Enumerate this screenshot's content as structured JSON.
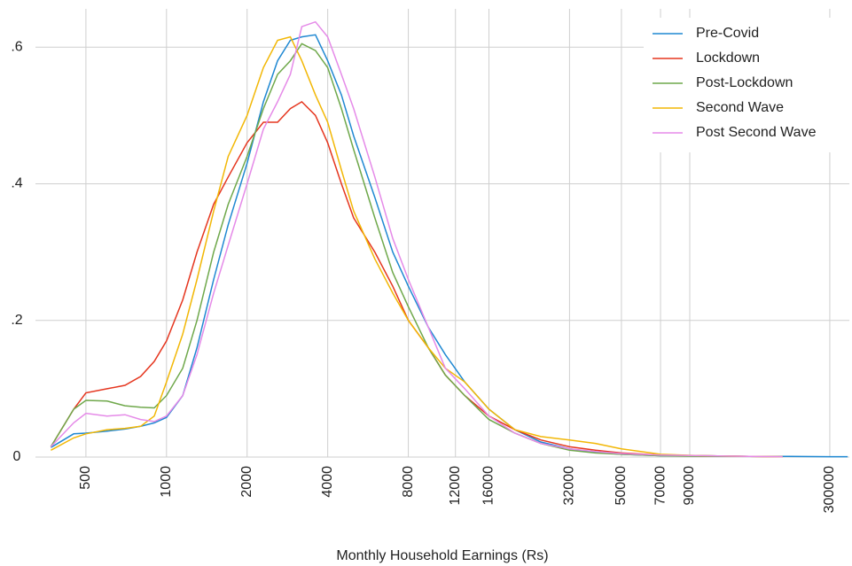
{
  "chart_data": {
    "type": "line",
    "x_label": "Monthly Household Earnings (Rs)",
    "x": [
      370,
      450,
      500,
      600,
      700,
      800,
      900,
      1000,
      1150,
      1300,
      1500,
      1700,
      2000,
      2300,
      2600,
      2900,
      3200,
      3600,
      4000,
      4500,
      5000,
      6000,
      7000,
      8000,
      9500,
      11000,
      13000,
      16000,
      20000,
      25000,
      32000,
      40000,
      50000,
      70000,
      100000,
      150000,
      200000,
      300000,
      350000
    ],
    "xlog": true,
    "xlim": [
      324,
      355000
    ],
    "xticks": [
      500,
      1000,
      2000,
      4000,
      8000,
      12000,
      16000,
      32000,
      50000,
      70000,
      90000,
      300000
    ],
    "ylim": [
      0,
      0.656
    ],
    "yticks": [
      0,
      {
        "value": 0.2,
        "label": ".2"
      },
      {
        "value": 0.4,
        "label": ".4"
      },
      {
        "value": 0.6,
        "label": ".6"
      }
    ],
    "grid": true,
    "legend": "top-right",
    "series": [
      {
        "name": "Pre-Covid",
        "color": "#1f88d2",
        "values": [
          0.014,
          0.034,
          0.035,
          0.038,
          0.041,
          0.045,
          0.05,
          0.058,
          0.09,
          0.16,
          0.26,
          0.34,
          0.43,
          0.52,
          0.58,
          0.61,
          0.615,
          0.618,
          0.58,
          0.53,
          0.47,
          0.38,
          0.3,
          0.25,
          0.19,
          0.15,
          0.11,
          0.07,
          0.04,
          0.022,
          0.012,
          0.007,
          0.004,
          0.002,
          0.002,
          0.001,
          0.001,
          0.0005,
          0.0005
        ]
      },
      {
        "name": "Lockdown",
        "color": "#e5361f",
        "values": [
          0.015,
          0.07,
          0.094,
          0.1,
          0.105,
          0.118,
          0.14,
          0.17,
          0.23,
          0.3,
          0.37,
          0.41,
          0.46,
          0.49,
          0.49,
          0.51,
          0.52,
          0.5,
          0.46,
          0.4,
          0.35,
          0.3,
          0.25,
          0.2,
          0.16,
          0.12,
          0.09,
          0.06,
          0.04,
          0.025,
          0.015,
          0.01,
          0.006,
          0.003,
          0.002,
          0.001,
          0.0005,
          null,
          null
        ]
      },
      {
        "name": "Post-Lockdown",
        "color": "#6fa84b",
        "values": [
          0.015,
          0.07,
          0.083,
          0.082,
          0.075,
          0.073,
          0.072,
          0.09,
          0.13,
          0.2,
          0.3,
          0.37,
          0.44,
          0.51,
          0.56,
          0.58,
          0.605,
          0.595,
          0.57,
          0.51,
          0.45,
          0.35,
          0.27,
          0.22,
          0.16,
          0.12,
          0.09,
          0.055,
          0.035,
          0.02,
          0.01,
          0.006,
          0.004,
          0.002,
          0.001,
          0.001,
          0.0005,
          null,
          null
        ]
      },
      {
        "name": "Second Wave",
        "color": "#f2b705",
        "values": [
          0.01,
          0.028,
          0.034,
          0.04,
          0.042,
          0.045,
          0.06,
          0.11,
          0.18,
          0.26,
          0.36,
          0.44,
          0.5,
          0.57,
          0.61,
          0.615,
          0.58,
          0.53,
          0.49,
          0.42,
          0.36,
          0.29,
          0.24,
          0.2,
          0.16,
          0.13,
          0.11,
          0.07,
          0.04,
          0.03,
          0.025,
          0.02,
          0.012,
          0.004,
          0.002,
          0.001,
          0.0005,
          null,
          null
        ]
      },
      {
        "name": "Post Second Wave",
        "color": "#e58ae8",
        "values": [
          0.015,
          0.05,
          0.064,
          0.06,
          0.062,
          0.055,
          0.052,
          0.06,
          0.09,
          0.15,
          0.24,
          0.31,
          0.4,
          0.48,
          0.52,
          0.56,
          0.63,
          0.637,
          0.615,
          0.56,
          0.51,
          0.41,
          0.32,
          0.26,
          0.19,
          0.13,
          0.1,
          0.06,
          0.035,
          0.02,
          0.012,
          0.008,
          0.005,
          0.003,
          0.002,
          0.001,
          0.0005,
          null,
          null
        ]
      }
    ]
  }
}
